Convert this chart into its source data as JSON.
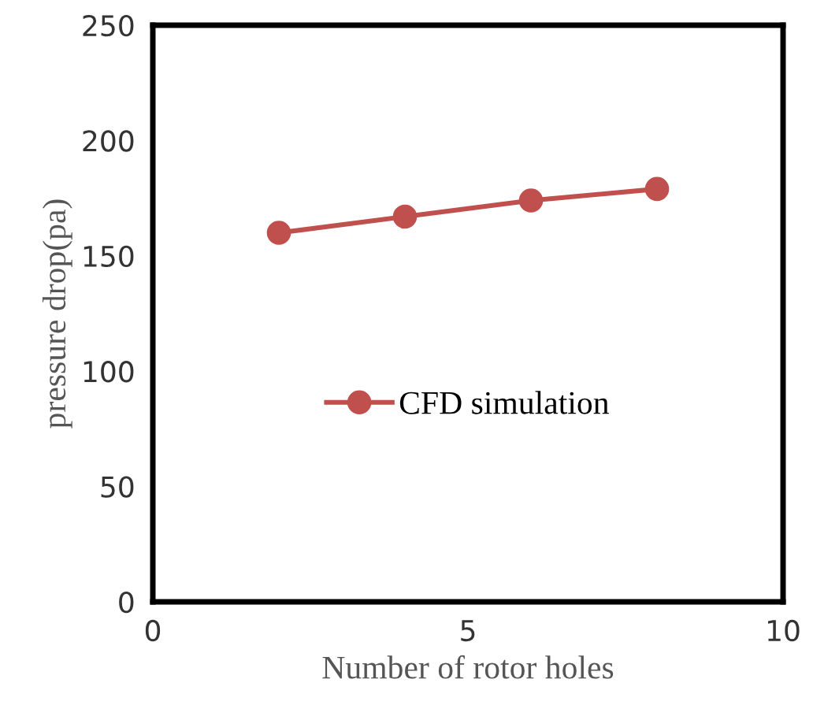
{
  "chart_data": {
    "type": "line",
    "xlabel": "Number of rotor holes",
    "ylabel": "pressure drop(pa)",
    "x": [
      2,
      4,
      6,
      8
    ],
    "series": [
      {
        "name": "CFD simulation",
        "color": "#c0504d",
        "values": [
          160,
          167,
          174,
          179
        ]
      }
    ],
    "xlim": [
      0,
      10
    ],
    "xticks": [
      0,
      5,
      10
    ],
    "ylim": [
      0,
      250
    ],
    "yticks": [
      0,
      50,
      100,
      150,
      200,
      250
    ],
    "grid": false,
    "legend": "center",
    "marker": "circle",
    "line_style": "solid"
  }
}
